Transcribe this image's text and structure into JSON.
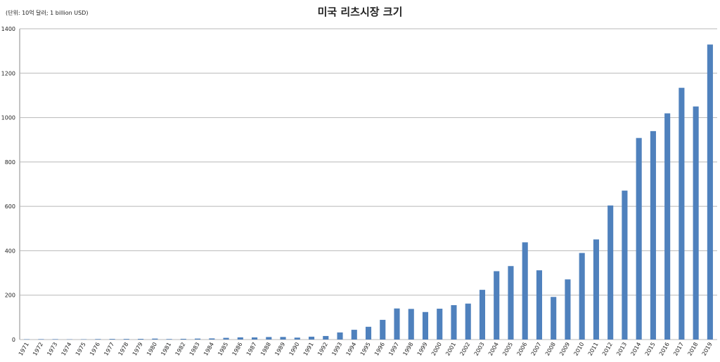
{
  "chart_data": {
    "type": "bar",
    "title": "미국 리츠시장 크기",
    "subtitle": "(단위: 10억 달러; 1 billion USD)",
    "categories": [
      "1971",
      "1972",
      "1973",
      "1974",
      "1975",
      "1976",
      "1977",
      "1978",
      "1979",
      "1980",
      "1981",
      "1982",
      "1983",
      "1984",
      "1985",
      "1986",
      "1987",
      "1988",
      "1989",
      "1990",
      "1991",
      "1992",
      "1993",
      "1994",
      "1995",
      "1996",
      "1997",
      "1998",
      "1999",
      "2000",
      "2001",
      "2002",
      "2003",
      "2004",
      "2005",
      "2006",
      "2007",
      "2008",
      "2009",
      "2010",
      "2011",
      "2012",
      "2013",
      "2014",
      "2015",
      "2016",
      "2017",
      "2018",
      "2019"
    ],
    "values": [
      1.5,
      1.9,
      1.9,
      1.2,
      1.4,
      2.3,
      2.8,
      2.8,
      3.2,
      4.3,
      2.4,
      3.3,
      4.3,
      5.1,
      7.7,
      9.9,
      9.7,
      11.4,
      11.7,
      8.7,
      12.9,
      16,
      32,
      44,
      57.5,
      88.8,
      140,
      138,
      124,
      139,
      155,
      162,
      224,
      308,
      331,
      438,
      312,
      192,
      271,
      390,
      451,
      604,
      671,
      908,
      939,
      1019,
      1134,
      1050,
      1329
    ],
    "color": "#4f81bd",
    "ylim": [
      0,
      1400
    ],
    "yticks": [
      0,
      200,
      400,
      600,
      800,
      1000,
      1200,
      1400
    ],
    "grid": true
  }
}
